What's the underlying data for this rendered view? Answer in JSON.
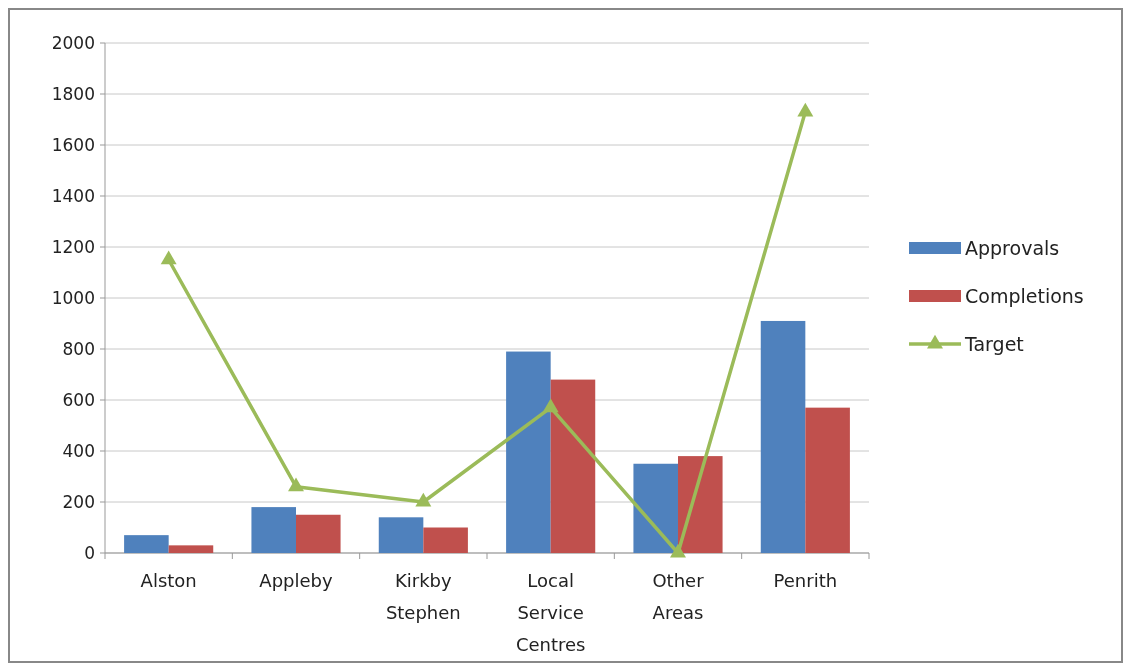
{
  "chart_data": {
    "type": "bar",
    "categories": [
      "Alston",
      "Appleby",
      "Kirkby Stephen",
      "Local Service Centres",
      "Other Areas",
      "Penrith"
    ],
    "series": [
      {
        "name": "Approvals",
        "color": "#4f81bd",
        "values": [
          70,
          180,
          140,
          790,
          350,
          910
        ]
      },
      {
        "name": "Completions",
        "color": "#c0504d",
        "values": [
          30,
          150,
          100,
          680,
          380,
          570
        ]
      },
      {
        "name": "Target",
        "type": "line",
        "color": "#9bbb59",
        "values": [
          1150,
          260,
          200,
          570,
          0,
          1730
        ]
      }
    ],
    "ylim": [
      0,
      2000
    ],
    "yticks": [
      0,
      200,
      400,
      600,
      800,
      1000,
      1200,
      1400,
      1600,
      1800,
      2000
    ],
    "grid": "y",
    "legend": "right",
    "marker": "triangle"
  }
}
